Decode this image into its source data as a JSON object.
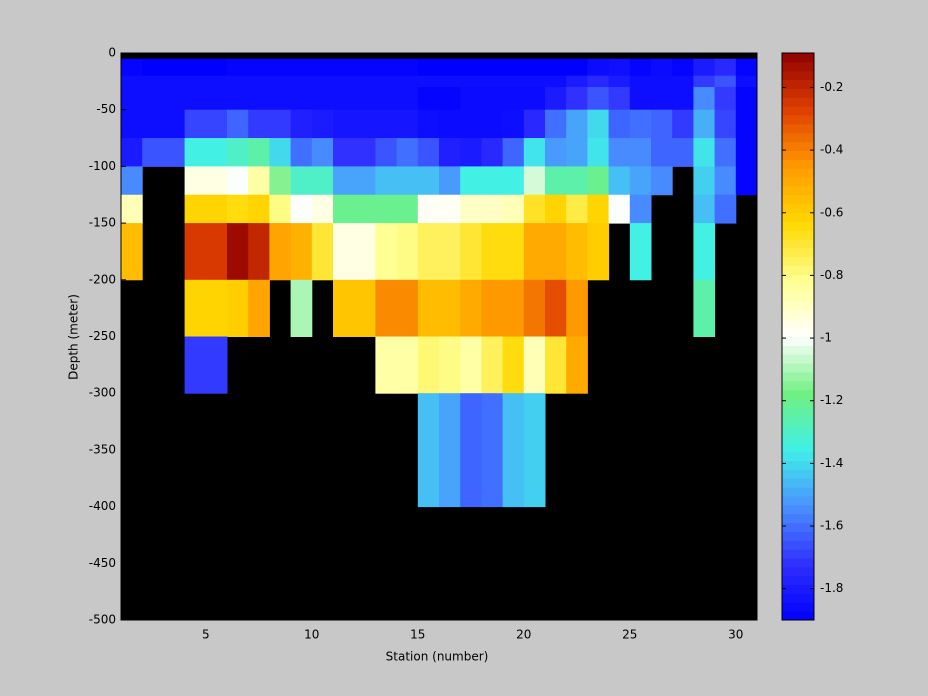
{
  "chart_data": {
    "type": "heatmap",
    "xlabel": "Station (number)",
    "ylabel": "Depth (meter)",
    "xlim": [
      1,
      31
    ],
    "xticks": [
      5,
      10,
      15,
      20,
      25,
      30
    ],
    "ylim": [
      -500,
      0
    ],
    "yticks": [
      -500,
      -450,
      -400,
      -350,
      -300,
      -250,
      -200,
      -150,
      -100,
      -50,
      0
    ],
    "x_edges": [
      1,
      2,
      3,
      4,
      5,
      6,
      7,
      8,
      9,
      10,
      11,
      12,
      13,
      14,
      15,
      16,
      17,
      18,
      19,
      20,
      21,
      22,
      23,
      24,
      25,
      26,
      27,
      28,
      29,
      30,
      31
    ],
    "y_edges": [
      0,
      -5,
      -20,
      -30,
      -50,
      -75,
      -100,
      -125,
      -150,
      -200,
      -250,
      -300,
      -400,
      -500
    ],
    "clim": [
      -1.9,
      -0.09
    ],
    "cticks": [
      -1.8,
      -1.6,
      -1.4,
      -1.2,
      -1,
      -0.8,
      -0.6,
      -0.4,
      -0.2
    ],
    "colormap": [
      "#0000ff",
      "#3030ff",
      "#4a90ff",
      "#40f0e8",
      "#70f080",
      "#ffffff",
      "#ffff90",
      "#ffd800",
      "#ff9a00",
      "#e04000",
      "#900000"
    ],
    "missing_color": "#000000",
    "z": [
      [
        null,
        null,
        null,
        null,
        null,
        null,
        null,
        null,
        null,
        null,
        null,
        null,
        null,
        null,
        null,
        null,
        null,
        null,
        null,
        null,
        null,
        null,
        null,
        null,
        null,
        null,
        null,
        null,
        null,
        null
      ],
      [
        -1.88,
        -1.9,
        -1.9,
        -1.9,
        -1.9,
        -1.88,
        -1.88,
        -1.88,
        -1.88,
        -1.88,
        -1.88,
        -1.88,
        -1.88,
        -1.88,
        -1.9,
        -1.9,
        -1.9,
        -1.9,
        -1.9,
        -1.9,
        -1.9,
        -1.9,
        -1.86,
        -1.84,
        -1.88,
        -1.86,
        -1.88,
        -1.8,
        -1.75,
        -1.88
      ],
      [
        -1.85,
        -1.85,
        -1.85,
        -1.85,
        -1.85,
        -1.85,
        -1.85,
        -1.85,
        -1.85,
        -1.85,
        -1.85,
        -1.85,
        -1.85,
        -1.85,
        -1.85,
        -1.85,
        -1.85,
        -1.85,
        -1.85,
        -1.85,
        -1.85,
        -1.8,
        -1.75,
        -1.8,
        -1.85,
        -1.85,
        -1.85,
        -1.7,
        -1.65,
        -1.85
      ],
      [
        -1.85,
        -1.85,
        -1.85,
        -1.85,
        -1.85,
        -1.85,
        -1.85,
        -1.85,
        -1.85,
        -1.85,
        -1.85,
        -1.85,
        -1.85,
        -1.85,
        -1.88,
        -1.88,
        -1.86,
        -1.86,
        -1.86,
        -1.86,
        -1.8,
        -1.72,
        -1.65,
        -1.7,
        -1.85,
        -1.85,
        -1.85,
        -1.55,
        -1.7,
        -1.88
      ],
      [
        -1.85,
        -1.85,
        -1.85,
        -1.68,
        -1.68,
        -1.62,
        -1.7,
        -1.7,
        -1.78,
        -1.8,
        -1.82,
        -1.82,
        -1.82,
        -1.82,
        -1.85,
        -1.86,
        -1.86,
        -1.86,
        -1.85,
        -1.75,
        -1.6,
        -1.5,
        -1.4,
        -1.62,
        -1.6,
        -1.62,
        -1.7,
        -1.48,
        -1.68,
        -1.88
      ],
      [
        -1.8,
        -1.65,
        -1.65,
        -1.35,
        -1.35,
        -1.3,
        -1.25,
        -1.4,
        -1.6,
        -1.55,
        -1.72,
        -1.72,
        -1.65,
        -1.6,
        -1.65,
        -1.78,
        -1.8,
        -1.75,
        -1.62,
        -1.38,
        -1.52,
        -1.5,
        -1.38,
        -1.55,
        -1.55,
        -1.62,
        -1.62,
        -1.38,
        -1.6,
        -1.88
      ],
      [
        -1.55,
        null,
        null,
        -0.95,
        -0.95,
        -1,
        -0.85,
        -1.15,
        -1.3,
        -1.3,
        -1.5,
        -1.5,
        -1.45,
        -1.45,
        -1.45,
        -1.52,
        -1.35,
        -1.35,
        -1.35,
        -1.05,
        -1.25,
        -1.25,
        -1.2,
        -1.45,
        -1.5,
        -1.55,
        null,
        -1.42,
        -1.55,
        -1.88
      ],
      [
        -0.88,
        null,
        null,
        -0.62,
        -0.62,
        -0.65,
        -0.62,
        -0.8,
        -1,
        -0.95,
        -1.2,
        -1.2,
        -1.2,
        -1.2,
        -0.98,
        -0.98,
        -0.9,
        -0.9,
        -0.88,
        -0.68,
        -0.62,
        -0.72,
        -0.62,
        -1,
        -1.55,
        null,
        null,
        -1.45,
        -1.6,
        null
      ],
      [
        -0.55,
        null,
        null,
        -0.25,
        -0.25,
        -0.12,
        -0.2,
        -0.48,
        -0.52,
        -0.7,
        -0.95,
        -0.95,
        -0.82,
        -0.8,
        -0.75,
        -0.75,
        -0.7,
        -0.65,
        -0.65,
        -0.5,
        -0.5,
        -0.55,
        -0.6,
        null,
        -1.35,
        null,
        null,
        -1.35,
        null,
        null
      ],
      [
        null,
        null,
        null,
        -0.62,
        -0.62,
        -0.6,
        -0.48,
        null,
        -1.1,
        null,
        -0.58,
        -0.58,
        -0.42,
        -0.42,
        -0.55,
        -0.55,
        -0.5,
        -0.45,
        -0.45,
        -0.38,
        -0.3,
        -0.45,
        null,
        null,
        null,
        null,
        null,
        -1.25,
        null,
        null
      ],
      [
        null,
        null,
        null,
        -1.7,
        -1.7,
        null,
        null,
        null,
        null,
        null,
        null,
        null,
        -0.85,
        -0.85,
        -0.78,
        -0.8,
        -0.85,
        -0.75,
        -0.65,
        -0.88,
        -0.7,
        -0.5,
        null,
        null,
        null,
        null,
        null,
        null,
        null,
        null
      ],
      [
        null,
        null,
        null,
        null,
        null,
        null,
        null,
        null,
        null,
        null,
        null,
        null,
        null,
        null,
        -1.45,
        -1.5,
        -1.62,
        -1.6,
        -1.45,
        -1.42,
        null,
        null,
        null,
        null,
        null,
        null,
        null,
        null,
        null,
        null
      ],
      [
        null,
        null,
        null,
        null,
        null,
        null,
        null,
        null,
        null,
        null,
        null,
        null,
        null,
        null,
        null,
        null,
        null,
        null,
        null,
        null,
        null,
        null,
        null,
        null,
        null,
        null,
        null,
        null,
        null,
        null
      ]
    ]
  }
}
